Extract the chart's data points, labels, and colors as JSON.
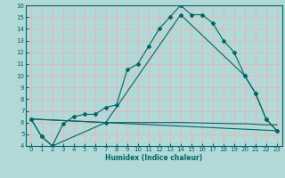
{
  "xlabel": "Humidex (Indice chaleur)",
  "bg_color": "#b2d8d8",
  "grid_color": "#e8b4b4",
  "line_color": "#006666",
  "xlim": [
    -0.5,
    23.5
  ],
  "ylim": [
    4,
    16
  ],
  "xticks": [
    0,
    1,
    2,
    3,
    4,
    5,
    6,
    7,
    8,
    9,
    10,
    11,
    12,
    13,
    14,
    15,
    16,
    17,
    18,
    19,
    20,
    21,
    22,
    23
  ],
  "yticks": [
    4,
    5,
    6,
    7,
    8,
    9,
    10,
    11,
    12,
    13,
    14,
    15,
    16
  ],
  "line1_x": [
    0,
    1,
    2,
    3,
    4,
    5,
    6,
    7,
    8,
    9,
    10,
    11,
    12,
    13,
    14,
    15,
    16,
    17,
    18,
    19,
    20,
    21,
    22,
    23
  ],
  "line1_y": [
    6.3,
    4.8,
    4.0,
    5.9,
    6.5,
    6.7,
    6.7,
    7.3,
    7.5,
    10.5,
    11.0,
    12.5,
    14.0,
    15.0,
    16.0,
    15.2,
    15.2,
    14.5,
    13.0,
    12.0,
    10.0,
    8.5,
    6.3,
    5.3
  ],
  "line2_x": [
    0,
    1,
    2,
    7,
    14,
    20,
    21,
    22,
    23
  ],
  "line2_y": [
    6.3,
    4.8,
    4.0,
    6.0,
    15.2,
    10.0,
    8.5,
    6.3,
    5.3
  ],
  "line3_x": [
    0,
    23
  ],
  "line3_y": [
    6.3,
    5.3
  ],
  "line4_x": [
    0,
    7,
    9,
    10,
    14,
    19,
    20,
    22,
    23
  ],
  "line4_y": [
    6.3,
    6.0,
    6.0,
    6.0,
    6.0,
    5.9,
    5.9,
    5.8,
    5.8
  ]
}
